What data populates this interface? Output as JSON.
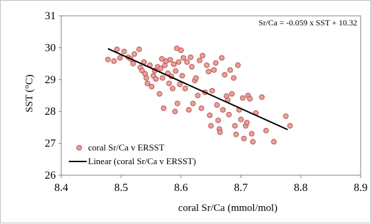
{
  "chart_data": {
    "type": "scatter",
    "title": "",
    "xlabel": "coral  Sr/Ca (mmol/mol)",
    "ylabel": "SST (°C)",
    "xlim": [
      8.4,
      8.9
    ],
    "ylim": [
      26,
      31
    ],
    "x_ticks": [
      "8.4",
      "8.5",
      "8.6",
      "8.7",
      "8.8",
      "8.9"
    ],
    "y_ticks": [
      "26",
      "27",
      "28",
      "29",
      "30",
      "31"
    ],
    "x_tick_values": [
      8.4,
      8.5,
      8.6,
      8.7,
      8.8,
      8.9
    ],
    "y_tick_values": [
      26,
      27,
      28,
      29,
      30,
      31
    ],
    "grid": false,
    "legend_position": "bottom-left",
    "annotation": "Sr/Ca = -0.059 x SST + 10.32",
    "colors": {
      "marker_fill": "#e8a29a",
      "marker_edge": "#c0504d",
      "trend": "#000000",
      "axis": "#7f7f7f"
    },
    "series": [
      {
        "name": "coral Sr/Ca v ERSST",
        "marker": "circle",
        "points": [
          [
            8.478,
            29.63
          ],
          [
            8.488,
            29.58
          ],
          [
            8.493,
            29.95
          ],
          [
            8.498,
            29.68
          ],
          [
            8.505,
            29.88
          ],
          [
            8.512,
            29.7
          ],
          [
            8.516,
            29.65
          ],
          [
            8.52,
            29.5
          ],
          [
            8.522,
            29.8
          ],
          [
            8.53,
            29.95
          ],
          [
            8.532,
            29.38
          ],
          [
            8.535,
            29.28
          ],
          [
            8.538,
            29.55
          ],
          [
            8.54,
            29.18
          ],
          [
            8.542,
            29.05
          ],
          [
            8.544,
            28.88
          ],
          [
            8.548,
            29.45
          ],
          [
            8.551,
            28.78
          ],
          [
            8.554,
            29.12
          ],
          [
            8.556,
            29.28
          ],
          [
            8.558,
            29.02
          ],
          [
            8.561,
            29.4
          ],
          [
            8.564,
            28.55
          ],
          [
            8.566,
            29.35
          ],
          [
            8.568,
            29.65
          ],
          [
            8.569,
            29.05
          ],
          [
            8.571,
            28.1
          ],
          [
            8.573,
            29.45
          ],
          [
            8.575,
            29.58
          ],
          [
            8.578,
            29.2
          ],
          [
            8.58,
            28.88
          ],
          [
            8.582,
            29.62
          ],
          [
            8.584,
            29.1
          ],
          [
            8.586,
            28.72
          ],
          [
            8.588,
            29.48
          ],
          [
            8.59,
            28.0
          ],
          [
            8.591,
            29.27
          ],
          [
            8.593,
            29.98
          ],
          [
            8.594,
            28.25
          ],
          [
            8.596,
            29.55
          ],
          [
            8.598,
            28.85
          ],
          [
            8.6,
            29.92
          ],
          [
            8.602,
            29.12
          ],
          [
            8.604,
            29.68
          ],
          [
            8.607,
            28.72
          ],
          [
            8.61,
            29.55
          ],
          [
            8.613,
            28.05
          ],
          [
            8.616,
            29.7
          ],
          [
            8.618,
            29.4
          ],
          [
            8.62,
            28.25
          ],
          [
            8.623,
            28.97
          ],
          [
            8.625,
            29.05
          ],
          [
            8.628,
            28.5
          ],
          [
            8.631,
            29.6
          ],
          [
            8.634,
            28.1
          ],
          [
            8.636,
            29.75
          ],
          [
            8.64,
            28.6
          ],
          [
            8.643,
            29.45
          ],
          [
            8.646,
            29.25
          ],
          [
            8.648,
            27.88
          ],
          [
            8.65,
            27.55
          ],
          [
            8.652,
            28.65
          ],
          [
            8.655,
            29.3
          ],
          [
            8.658,
            29.52
          ],
          [
            8.66,
            28.2
          ],
          [
            8.662,
            27.72
          ],
          [
            8.664,
            27.45
          ],
          [
            8.665,
            27.35
          ],
          [
            8.668,
            29.68
          ],
          [
            8.67,
            28.05
          ],
          [
            8.673,
            29.15
          ],
          [
            8.676,
            28.48
          ],
          [
            8.678,
            28.35
          ],
          [
            8.68,
            27.9
          ],
          [
            8.682,
            29.3
          ],
          [
            8.685,
            28.55
          ],
          [
            8.688,
            29.05
          ],
          [
            8.69,
            27.55
          ],
          [
            8.692,
            27.28
          ],
          [
            8.695,
            29.45
          ],
          [
            8.697,
            28.05
          ],
          [
            8.7,
            27.75
          ],
          [
            8.703,
            28.42
          ],
          [
            8.705,
            27.15
          ],
          [
            8.708,
            27.55
          ],
          [
            8.71,
            27.65
          ],
          [
            8.712,
            28.5
          ],
          [
            8.715,
            28.4
          ],
          [
            8.718,
            27.3
          ],
          [
            8.72,
            27.05
          ],
          [
            8.725,
            27.95
          ],
          [
            8.735,
            28.45
          ],
          [
            8.742,
            27.4
          ],
          [
            8.755,
            27.05
          ],
          [
            8.775,
            27.85
          ],
          [
            8.782,
            27.55
          ]
        ]
      },
      {
        "name": "Linear (coral Sr/Ca v ERSST)",
        "type": "line",
        "x": [
          8.478,
          8.778
        ],
        "y": [
          29.97,
          27.43
        ]
      }
    ]
  }
}
